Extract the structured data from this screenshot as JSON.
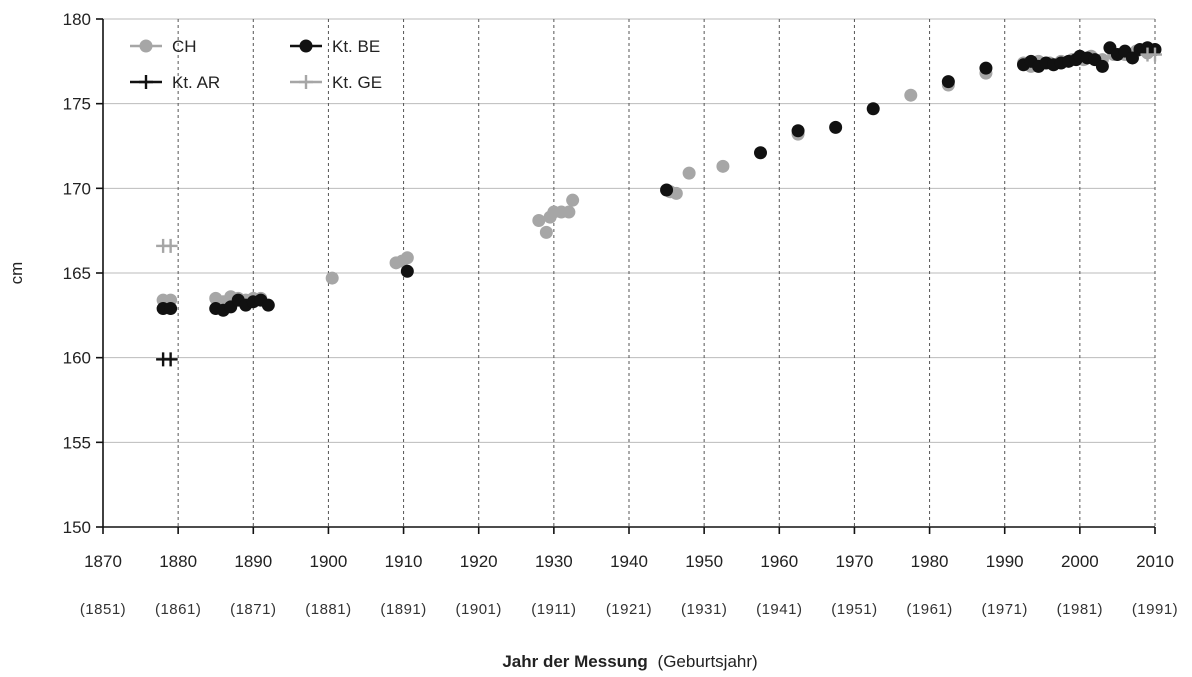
{
  "chart_data": {
    "type": "scatter",
    "title": "",
    "ylabel": "cm",
    "xlabel": "Jahr der Messung",
    "xlabel_suffix": "(Geburtsjahr)",
    "xlim": [
      1870,
      2010
    ],
    "ylim": [
      150,
      180
    ],
    "x_ticks": [
      1870,
      1880,
      1890,
      1900,
      1910,
      1920,
      1930,
      1940,
      1950,
      1960,
      1970,
      1980,
      1990,
      2000,
      2010
    ],
    "x_tick_labels": [
      "1870",
      "1880",
      "1890",
      "1900",
      "1910",
      "1920",
      "1930",
      "1940",
      "1950",
      "1960",
      "1970",
      "1980",
      "1990",
      "2000",
      "2010"
    ],
    "x_subtick_labels": [
      "(1851)",
      "(1861)",
      "(1871)",
      "(1881)",
      "(1891)",
      "(1901)",
      "(1911)",
      "(1921)",
      "(1931)",
      "(1941)",
      "(1951)",
      "(1961)",
      "(1971)",
      "(1981)",
      "(1991)"
    ],
    "y_ticks": [
      150,
      155,
      160,
      165,
      170,
      175,
      180
    ],
    "y_tick_labels": [
      "150",
      "155",
      "160",
      "165",
      "170",
      "175",
      "180"
    ],
    "grid": "vertical dashed",
    "legend_position": "top-left",
    "series": [
      {
        "name": "CH",
        "marker": "circle",
        "color": "#a6a6a6",
        "points": [
          [
            1878,
            163.4
          ],
          [
            1879,
            163.4
          ],
          [
            1885,
            163.5
          ],
          [
            1886,
            163.3
          ],
          [
            1887,
            163.6
          ],
          [
            1888,
            163.5
          ],
          [
            1889,
            163.4
          ],
          [
            1890,
            163.5
          ],
          [
            1891,
            163.5
          ],
          [
            1900.5,
            164.7
          ],
          [
            1909,
            165.6
          ],
          [
            1909.8,
            165.7
          ],
          [
            1910.5,
            165.9
          ],
          [
            1928,
            168.1
          ],
          [
            1929,
            167.4
          ],
          [
            1929.5,
            168.3
          ],
          [
            1930,
            168.6
          ],
          [
            1931,
            168.6
          ],
          [
            1932,
            168.6
          ],
          [
            1932.5,
            169.3
          ],
          [
            1945.5,
            169.8
          ],
          [
            1946.3,
            169.7
          ],
          [
            1948,
            170.9
          ],
          [
            1952.5,
            171.3
          ],
          [
            1962.5,
            173.2
          ],
          [
            1977.5,
            175.5
          ],
          [
            1982.5,
            176.1
          ],
          [
            1987.5,
            176.8
          ],
          [
            1992.5,
            177.4
          ],
          [
            1993.5,
            177.2
          ],
          [
            1994.5,
            177.5
          ],
          [
            1996,
            177.4
          ],
          [
            1997.5,
            177.5
          ],
          [
            1999,
            177.6
          ],
          [
            2000.5,
            177.6
          ],
          [
            2001.5,
            177.8
          ],
          [
            2003,
            177.6
          ],
          [
            2004.5,
            177.9
          ],
          [
            2006,
            177.9
          ],
          [
            2007.5,
            178.1
          ],
          [
            2009,
            178.0
          ]
        ]
      },
      {
        "name": "Kt. BE",
        "marker": "circle",
        "color": "#111111",
        "points": [
          [
            1878,
            162.9
          ],
          [
            1879,
            162.9
          ],
          [
            1885,
            162.9
          ],
          [
            1886,
            162.8
          ],
          [
            1887,
            163.0
          ],
          [
            1888,
            163.4
          ],
          [
            1889,
            163.1
          ],
          [
            1890,
            163.3
          ],
          [
            1891,
            163.4
          ],
          [
            1892,
            163.1
          ],
          [
            1910.5,
            165.1
          ],
          [
            1945,
            169.9
          ],
          [
            1957.5,
            172.1
          ],
          [
            1962.5,
            173.4
          ],
          [
            1967.5,
            173.6
          ],
          [
            1972.5,
            174.7
          ],
          [
            1982.5,
            176.3
          ],
          [
            1987.5,
            177.1
          ],
          [
            1992.5,
            177.3
          ],
          [
            1993.5,
            177.5
          ],
          [
            1994.5,
            177.2
          ],
          [
            1995.5,
            177.4
          ],
          [
            1996.5,
            177.3
          ],
          [
            1997.5,
            177.4
          ],
          [
            1998.5,
            177.5
          ],
          [
            1999.5,
            177.6
          ],
          [
            2000,
            177.8
          ],
          [
            2001,
            177.7
          ],
          [
            2002,
            177.6
          ],
          [
            2003,
            177.2
          ],
          [
            2004,
            178.3
          ],
          [
            2005,
            177.9
          ],
          [
            2006,
            178.1
          ],
          [
            2007,
            177.7
          ],
          [
            2008,
            178.2
          ],
          [
            2009,
            178.3
          ],
          [
            2010,
            178.2
          ]
        ]
      },
      {
        "name": "Kt. AR",
        "marker": "plus",
        "color": "#111111",
        "points": [
          [
            1878,
            159.9
          ],
          [
            1879,
            159.9
          ]
        ]
      },
      {
        "name": "Kt. GE",
        "marker": "plus",
        "color": "#a6a6a6",
        "points": [
          [
            1878,
            166.6
          ],
          [
            1879,
            166.6
          ],
          [
            2009,
            177.9
          ],
          [
            2010,
            177.9
          ]
        ]
      }
    ]
  }
}
